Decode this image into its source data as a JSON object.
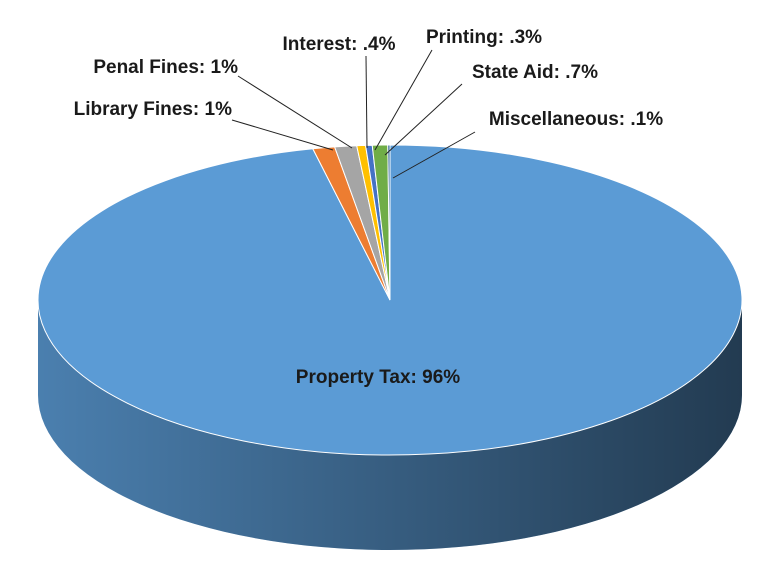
{
  "chart_data": {
    "type": "pie3d",
    "values": [
      96,
      1,
      1,
      0.4,
      0.3,
      0.7,
      0.1
    ],
    "value_labels": [
      "Property Tax: 96%",
      "Library Fines: 1%",
      "Penal Fines: 1%",
      "Interest: .4%",
      "Printing: .3%",
      "State Aid: .7%",
      "Miscellaneous: .1%"
    ],
    "colors": [
      "#5b9bd5",
      "#ed7d31",
      "#a5a5a5",
      "#ffc000",
      "#4472c4",
      "#70ad47",
      "#255e91"
    ]
  }
}
